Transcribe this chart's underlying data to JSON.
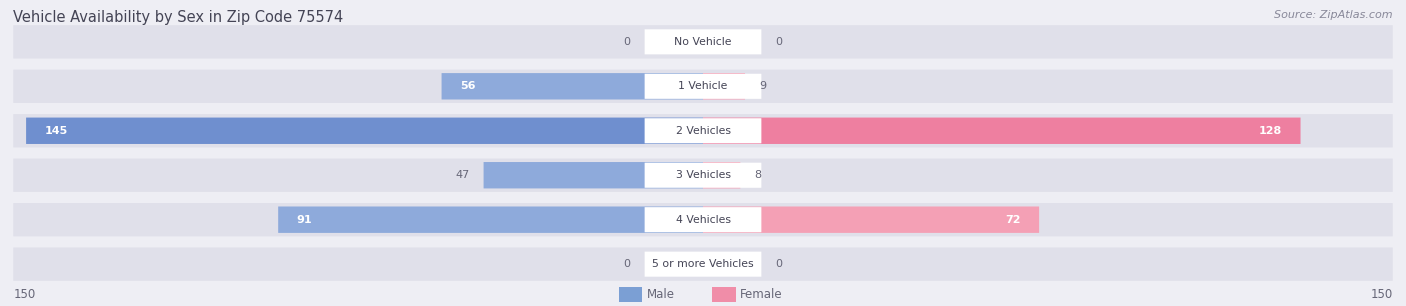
{
  "title": "Vehicle Availability by Sex in Zip Code 75574",
  "source": "Source: ZipAtlas.com",
  "categories": [
    "No Vehicle",
    "1 Vehicle",
    "2 Vehicles",
    "3 Vehicles",
    "4 Vehicles",
    "5 or more Vehicles"
  ],
  "male_values": [
    0,
    56,
    145,
    47,
    91,
    0
  ],
  "female_values": [
    0,
    9,
    128,
    8,
    72,
    0
  ],
  "male_color": "#8eaadb",
  "female_color": "#f4a0b5",
  "male_color_strong": "#6f8fcf",
  "female_color_strong": "#ee7fa0",
  "male_legend_color": "#7b9fd4",
  "female_legend_color": "#f08da8",
  "xlim": 150,
  "background_color": "#eeeef4",
  "bar_background": "#e0e0ea",
  "title_color": "#444455",
  "source_color": "#888899",
  "label_color": "#666677",
  "category_label_color": "#444455",
  "figsize": [
    14.06,
    3.06
  ],
  "dpi": 100
}
